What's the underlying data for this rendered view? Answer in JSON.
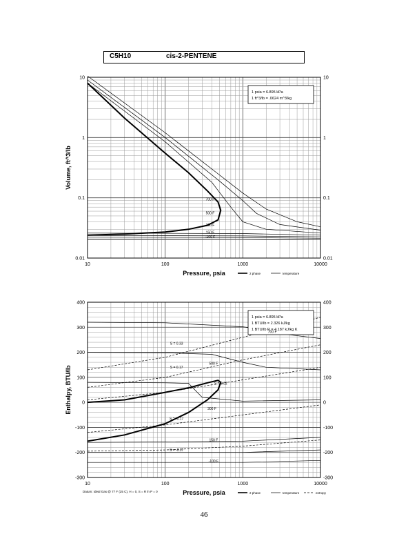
{
  "header": {
    "formula": "C5H10",
    "name": "cis-2-PENTENE"
  },
  "page_number": "46",
  "chart_data": [
    {
      "type": "line",
      "title": "",
      "xlabel": "Pressure,  psia",
      "ylabel": "Volume, ft^3/lb",
      "xscale": "log",
      "yscale": "log",
      "xlim": [
        10,
        10000
      ],
      "ylim": [
        0.01,
        10
      ],
      "xticks": [
        "10",
        "100",
        "1000",
        "10000"
      ],
      "yticks": [
        "10",
        "1",
        "0.1",
        "0.01"
      ],
      "yticks_right": [
        "10",
        "1",
        "0.1",
        "0.01"
      ],
      "grid": true,
      "legend_box": [
        "1 psia  =  6.895 kPa",
        "1 ft^3/lb  =  .0624 m^3/kg"
      ],
      "legend_keys": [
        "2 phase",
        "temperature"
      ],
      "isotherm_labels": [
        "700 F",
        "500 F",
        "300 F",
        "150 F",
        "-100 F"
      ],
      "series": [
        {
          "role": "2 phase",
          "x": [
            10,
            30,
            100,
            200,
            350,
            480,
            520,
            480,
            350,
            200,
            100,
            30,
            10
          ],
          "y": [
            8,
            2.1,
            0.55,
            0.26,
            0.13,
            0.085,
            0.062,
            0.043,
            0.035,
            0.03,
            0.027,
            0.025,
            0.024
          ]
        },
        {
          "role": "temperature",
          "x": [
            10,
            100,
            500,
            1000,
            2000,
            5000,
            10000
          ],
          "y": [
            10.5,
            1.2,
            0.24,
            0.12,
            0.065,
            0.04,
            0.033
          ]
        },
        {
          "role": "temperature",
          "x": [
            10,
            100,
            500,
            1000,
            1500,
            3000,
            10000
          ],
          "y": [
            9,
            1.0,
            0.19,
            0.09,
            0.055,
            0.036,
            0.029
          ]
        },
        {
          "role": "temperature",
          "x": [
            10,
            100,
            400,
            700,
            1000,
            2000,
            10000
          ],
          "y": [
            8,
            0.85,
            0.18,
            0.07,
            0.04,
            0.03,
            0.026
          ]
        },
        {
          "role": "temperature",
          "x": [
            10,
            1000,
            10000
          ],
          "y": [
            0.026,
            0.0255,
            0.024
          ]
        },
        {
          "role": "temperature",
          "x": [
            10,
            1000,
            10000
          ],
          "y": [
            0.0237,
            0.0233,
            0.0225
          ]
        },
        {
          "role": "temperature",
          "x": [
            10,
            1000,
            10000
          ],
          "y": [
            0.0222,
            0.0219,
            0.0213
          ]
        },
        {
          "role": "temperature",
          "x": [
            10,
            1000,
            10000
          ],
          "y": [
            0.0207,
            0.0205,
            0.02
          ]
        }
      ]
    },
    {
      "type": "line",
      "title": "",
      "xlabel": "Pressure,  psia",
      "ylabel": "Enthalpy, BTU/lb",
      "xscale": "log",
      "yscale": "linear",
      "xlim": [
        10,
        10000
      ],
      "ylim": [
        -300,
        400
      ],
      "xticks": [
        "10",
        "100",
        "1000",
        "10000"
      ],
      "yticks": [
        "400",
        "300",
        "200",
        "100",
        "0",
        "-100",
        "-200",
        "-300"
      ],
      "yticks_right": [
        "400",
        "300",
        "200",
        "100",
        "0",
        "-100",
        "-200",
        "-300"
      ],
      "grid": true,
      "legend_box": [
        "1 psia  =  6.895 kPa",
        "1 BTU/lb  =  2.326 kJ/kg",
        "1 BTU/lb R  =  4.187 kJ/kg K"
      ],
      "legend_keys": [
        "2 phase",
        "temperature",
        "entropy"
      ],
      "isotherm_labels": [
        "700 F",
        "500 F",
        "300 F",
        "150 F",
        "-100 F"
      ],
      "entropy_labels": [
        "S = 0.33",
        "S = 0.17",
        "S = 0.02",
        "S = -0.17",
        "S = -0.37"
      ],
      "footnote": "Datum: Ideal Gas @ 77 F (25 C),  H = 0,  S = R ln P = 0",
      "series": [
        {
          "role": "2 phase",
          "x": [
            10,
            30,
            100,
            200,
            350,
            480,
            520,
            480,
            350,
            200,
            100,
            30,
            10
          ],
          "y": [
            0,
            10,
            40,
            58,
            78,
            88,
            80,
            50,
            10,
            -40,
            -85,
            -130,
            -155
          ]
        },
        {
          "role": "temperature",
          "x": [
            10,
            100,
            1000,
            2000,
            4000,
            10000
          ],
          "y": [
            320,
            318,
            302,
            288,
            270,
            255
          ]
        },
        {
          "role": "temperature",
          "x": [
            10,
            100,
            400,
            1000,
            2000,
            10000
          ],
          "y": [
            200,
            198,
            192,
            160,
            140,
            130
          ]
        },
        {
          "role": "temperature",
          "x": [
            10,
            100,
            200,
            300,
            1000,
            10000
          ],
          "y": [
            80,
            78,
            76,
            20,
            5,
            10
          ]
        },
        {
          "role": "temperature",
          "x": [
            10,
            100,
            1000,
            10000
          ],
          "y": [
            -160,
            -158,
            -155,
            -140
          ]
        },
        {
          "role": "temperature",
          "x": [
            10,
            1000,
            10000
          ],
          "y": [
            -200,
            -200,
            -190
          ]
        },
        {
          "role": "temperature",
          "x": [
            10,
            1000,
            10000
          ],
          "y": [
            -240,
            -240,
            -232
          ]
        },
        {
          "role": "entropy",
          "x": [
            10,
            100,
            1000,
            10000
          ],
          "y": [
            130,
            180,
            260,
            340
          ]
        },
        {
          "role": "entropy",
          "x": [
            10,
            100,
            1000,
            10000
          ],
          "y": [
            60,
            100,
            170,
            230
          ]
        },
        {
          "role": "entropy",
          "x": [
            10,
            100,
            1000,
            10000
          ],
          "y": [
            10,
            40,
            90,
            140
          ]
        },
        {
          "role": "entropy",
          "x": [
            10,
            100,
            1000,
            10000
          ],
          "y": [
            -120,
            -90,
            -50,
            -10
          ]
        },
        {
          "role": "entropy",
          "x": [
            10,
            100,
            1000,
            10000
          ],
          "y": [
            -195,
            -190,
            -175,
            -150
          ]
        }
      ]
    }
  ]
}
